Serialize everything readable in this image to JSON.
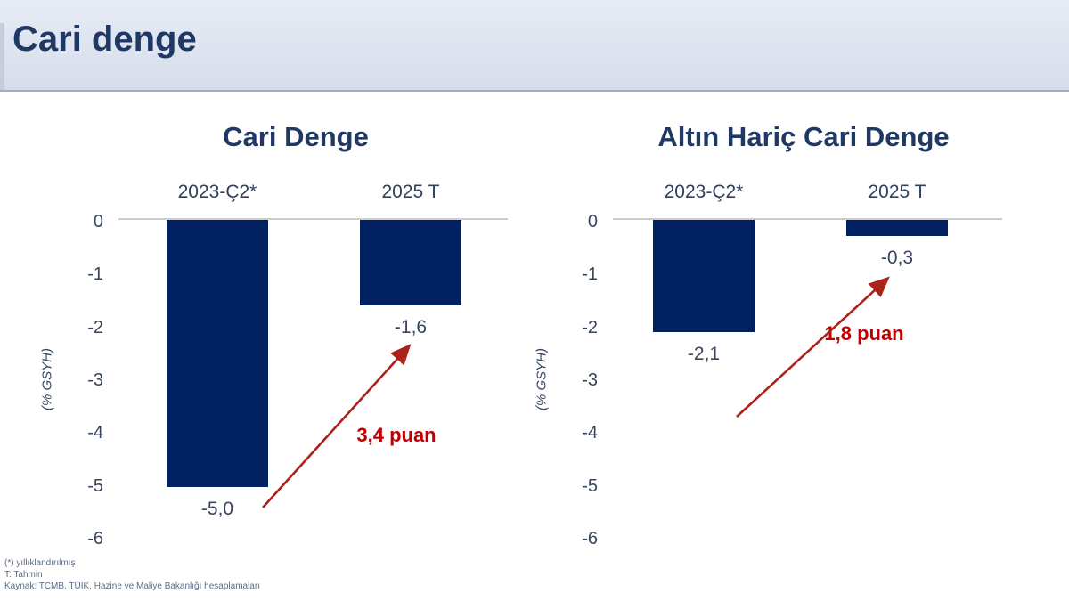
{
  "header": {
    "title": "Cari denge"
  },
  "chart_data": [
    {
      "type": "bar",
      "title": "Cari Denge",
      "ylabel": "(% GSYH)",
      "ylim": [
        -6,
        0
      ],
      "yticks": [
        "0",
        "-1",
        "-2",
        "-3",
        "-4",
        "-5",
        "-6"
      ],
      "categories": [
        "2023-Ç2*",
        "2025 T"
      ],
      "values": [
        -5.0,
        -1.6
      ],
      "value_labels": [
        "-5,0",
        "-1,6"
      ],
      "annotation": "3,4 puan",
      "grid": "zero-line-only",
      "legend": "none"
    },
    {
      "type": "bar",
      "title": "Altın Hariç Cari Denge",
      "ylabel": "(% GSYH)",
      "ylim": [
        -6,
        0
      ],
      "yticks": [
        "0",
        "-1",
        "-2",
        "-3",
        "-4",
        "-5",
        "-6"
      ],
      "categories": [
        "2023-Ç2*",
        "2025 T"
      ],
      "values": [
        -2.1,
        -0.3
      ],
      "value_labels": [
        "-2,1",
        "-0,3"
      ],
      "annotation": "1,8 puan",
      "grid": "zero-line-only",
      "legend": "none"
    }
  ],
  "footnotes": [
    "(*) yıllıklandırılmış",
    "T: Tahmin",
    "Kaynak: TCMB, TÜİK, Hazine ve Maliye Bakanlığı hesaplamaları"
  ],
  "colors": {
    "bar": "#002060",
    "title": "#1f3864",
    "annotation_red": "#c00000",
    "arrow_red": "#ab2318",
    "axis_text": "#37465e",
    "zero_line": "#c9cdd5",
    "header_bg": "#dbe2ee",
    "footnote_text": "#5d6c85"
  }
}
